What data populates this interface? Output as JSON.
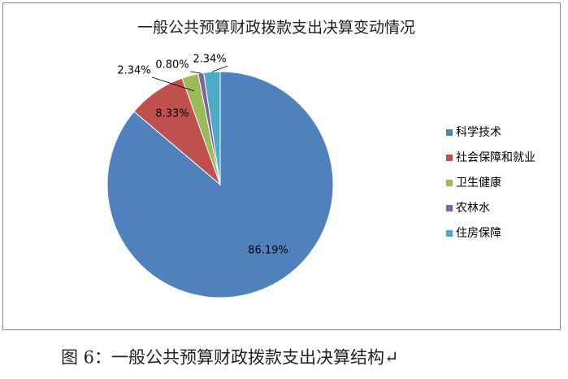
{
  "chart_data": {
    "type": "pie",
    "title": "一般公共预算财政拨款支出决算变动情况",
    "categories": [
      "科学技术",
      "社会保障和就业",
      "卫生健康",
      "农林水",
      "住房保障"
    ],
    "values": [
      86.19,
      8.33,
      2.34,
      0.8,
      2.34
    ],
    "value_labels": [
      "86.19%",
      "8.33%",
      "2.34%",
      "0.80%",
      "2.34%"
    ],
    "colors": [
      "#4f81bd",
      "#c0504d",
      "#9bbb59",
      "#8064a2",
      "#4bacc6"
    ],
    "legend": "right"
  },
  "caption": "图 6：一般公共预算财政拨款支出决算结构↵"
}
